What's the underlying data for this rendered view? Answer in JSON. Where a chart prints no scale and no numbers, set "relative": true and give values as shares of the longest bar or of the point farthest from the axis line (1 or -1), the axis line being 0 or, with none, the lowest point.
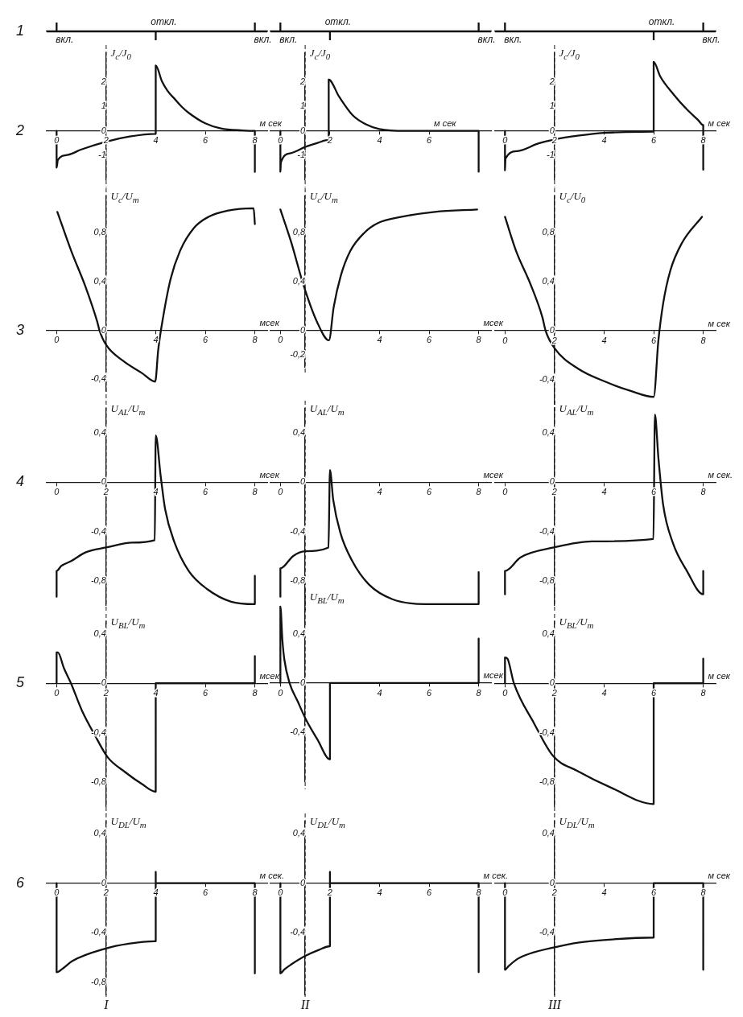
{
  "chart_data": [
    {
      "type": "line",
      "title": "1",
      "relative": true,
      "x": [
        -0.4,
        0,
        0,
        0,
        4,
        4,
        4,
        8,
        8,
        8,
        8.5
      ],
      "values": [
        0,
        0,
        1,
        0,
        0,
        -1,
        0,
        0,
        1,
        0,
        0
      ],
      "color": "#111111",
      "xlim": [
        -0.4,
        8.5
      ],
      "tick_labels": false,
      "marker": "none",
      "annotations": [
        {
          "text": "вкл.",
          "x": 0,
          "y": 1
        },
        {
          "text": "откл.",
          "x": 4,
          "y": -1
        },
        {
          "text": "вкл.",
          "x": 8,
          "y": 1
        }
      ]
    },
    {
      "type": "line",
      "relative": true,
      "x": [
        -0.4,
        0,
        0,
        0,
        2,
        2,
        2,
        8,
        8,
        8,
        8.5
      ],
      "values": [
        0,
        0,
        1,
        0,
        0,
        -1,
        0,
        0,
        1,
        0,
        0
      ],
      "color": "#111111",
      "xlim": [
        -0.4,
        8.5
      ],
      "tick_labels": false,
      "marker": "none",
      "annotations": [
        {
          "text": "вкл.",
          "x": 0,
          "y": 1
        },
        {
          "text": "откл.",
          "x": 2,
          "y": -1
        },
        {
          "text": "вкл.",
          "x": 8,
          "y": 1
        }
      ]
    },
    {
      "type": "line",
      "relative": true,
      "x": [
        -0.4,
        0,
        0,
        0,
        6,
        6,
        6,
        8,
        8,
        8,
        8.5
      ],
      "values": [
        0,
        0,
        1,
        0,
        0,
        -1,
        0,
        0,
        1,
        0,
        0
      ],
      "color": "#111111",
      "xlim": [
        -0.4,
        8.5
      ],
      "tick_labels": false,
      "marker": "none",
      "annotations": [
        {
          "text": "вкл.",
          "x": 0,
          "y": 1
        },
        {
          "text": "откл.",
          "x": 6,
          "y": -1
        },
        {
          "text": "вкл.",
          "x": 8,
          "y": 1
        }
      ]
    },
    {
      "type": "line",
      "title": "2",
      "xlabel": "м сек",
      "ylabel": "J$_{c}$/J$_{0}$",
      "x": [
        0,
        0,
        0.05,
        0.46,
        1.0,
        2.0,
        2.95,
        4.0,
        4.0,
        4.25,
        4.47,
        4.79,
        5.06,
        5.33,
        5.98,
        6.63,
        7.5,
        8.0,
        8.0
      ],
      "values": [
        0,
        -1.5,
        -1.19,
        -0.98,
        -0.76,
        -0.44,
        -0.23,
        -0.12,
        2.68,
        2.03,
        1.65,
        1.28,
        0.98,
        0.74,
        0.32,
        0.1,
        0.02,
        0.0,
        -1.68
      ],
      "color": "#111111",
      "xlim": [
        -0.4,
        8.5
      ],
      "ylim": [
        -2,
        3.2
      ],
      "xticks": [
        0,
        2,
        4,
        6,
        8
      ],
      "yticks": [
        -1,
        0,
        1,
        2
      ],
      "ref_lines": [
        {
          "axis": "x",
          "value": 2
        }
      ],
      "marker": "none"
    },
    {
      "type": "line",
      "xlabel": "м сек",
      "ylabel": "J$_{c}$/J$_{0}$",
      "x": [
        0,
        0,
        0.02,
        0.42,
        1.02,
        1.5,
        1.95,
        1.95,
        2.37,
        2.91,
        3.45,
        3.99,
        5.07,
        8.0,
        8.0
      ],
      "values": [
        0,
        -1.67,
        -1.29,
        -0.91,
        -0.65,
        -0.49,
        -0.37,
        2.1,
        1.4,
        0.65,
        0.27,
        0.08,
        0.0,
        0.0,
        -1.67
      ],
      "color": "#111111",
      "xlim": [
        -0.4,
        8.5
      ],
      "ylim": [
        -2,
        3.2
      ],
      "xticks": [
        0,
        2,
        4,
        6
      ],
      "yticks": [
        -1,
        0,
        1,
        2
      ],
      "ref_lines": [
        {
          "axis": "x",
          "value": 1
        }
      ],
      "marker": "none"
    },
    {
      "type": "line",
      "xlabel": "м сек",
      "ylabel": "J$_{c}$/J$_{0}$",
      "x": [
        0,
        0,
        0.02,
        0.49,
        1.36,
        2.0,
        3.0,
        3.97,
        4.84,
        6.0,
        6.0,
        6.26,
        6.8,
        7.35,
        7.79,
        8.0,
        8.0
      ],
      "values": [
        0,
        -1.62,
        -1.14,
        -0.83,
        -0.51,
        -0.35,
        -0.19,
        -0.08,
        -0.05,
        -0.03,
        2.83,
        2.24,
        1.5,
        0.87,
        0.45,
        0.24,
        -1.59
      ],
      "color": "#111111",
      "xlim": [
        -0.4,
        8.5
      ],
      "ylim": [
        -2,
        3.2
      ],
      "xticks": [
        0,
        2,
        4,
        6,
        8
      ],
      "yticks": [
        -1,
        0,
        1,
        2
      ],
      "ref_lines": [
        {
          "axis": "x",
          "value": 2
        }
      ],
      "marker": "none"
    },
    {
      "type": "line",
      "title": "3",
      "xlabel": "мсек",
      "ylabel": "U$_{c}$/U$_{m}$",
      "x": [
        0.03,
        0.59,
        1.16,
        1.64,
        1.73,
        2.0,
        2.68,
        3.44,
        3.98,
        4.1,
        4.3,
        4.6,
        4.98,
        5.55,
        6.13,
        6.89,
        7.95,
        8.0
      ],
      "values": [
        0.97,
        0.65,
        0.36,
        0.07,
        0.0,
        -0.12,
        -0.25,
        -0.35,
        -0.42,
        -0.16,
        0.11,
        0.42,
        0.65,
        0.84,
        0.93,
        0.98,
        1.0,
        0.87
      ],
      "color": "#111111",
      "xlim": [
        -0.4,
        8.5
      ],
      "ylim": [
        -0.5,
        1.1
      ],
      "xticks": [
        0,
        4,
        6,
        8
      ],
      "yticks": [
        {
          "value": -0.4,
          "label": "-0,4"
        },
        0,
        {
          "value": 0.4,
          "label": "0,4"
        },
        {
          "value": 0.8,
          "label": "0,8"
        }
      ],
      "ref_lines": [
        {
          "axis": "x",
          "value": 2
        }
      ],
      "marker": "none"
    },
    {
      "type": "line",
      "xlabel": "мсек",
      "ylabel": "U$_{c}$/U$_{m}$",
      "x": [
        0,
        0.44,
        0.92,
        1.48,
        1.96,
        2.15,
        2.44,
        2.82,
        3.39,
        3.95,
        4.9,
        6.23,
        7.94
      ],
      "values": [
        0.99,
        0.72,
        0.38,
        0.07,
        -0.08,
        0.19,
        0.45,
        0.65,
        0.8,
        0.88,
        0.93,
        0.97,
        0.99
      ],
      "color": "#111111",
      "xlim": [
        -0.4,
        8.5
      ],
      "ylim": [
        -0.3,
        1.1
      ],
      "xticks": [
        0,
        4,
        6,
        8
      ],
      "yticks": [
        {
          "value": -0.2,
          "label": "-0,2"
        },
        0,
        {
          "value": 0.4,
          "label": "0,4"
        },
        {
          "value": 0.8,
          "label": "0,8"
        }
      ],
      "ref_lines": [
        {
          "axis": "x",
          "value": 1
        }
      ],
      "marker": "none"
    },
    {
      "type": "line",
      "xlabel": "м сек",
      "ylabel": "U$_{c}$/U$_{0}$",
      "x": [
        0,
        0.45,
        1.03,
        1.51,
        1.64,
        1.99,
        2.95,
        4.1,
        5.05,
        6.0,
        6.19,
        6.38,
        6.67,
        7.15,
        7.95
      ],
      "values": [
        0.93,
        0.65,
        0.38,
        0.11,
        0.0,
        -0.14,
        -0.31,
        -0.42,
        -0.49,
        -0.54,
        -0.08,
        0.22,
        0.49,
        0.72,
        0.93
      ],
      "color": "#111111",
      "xlim": [
        -0.4,
        8.5
      ],
      "ylim": [
        -0.6,
        1.1
      ],
      "xticks": [
        0,
        2,
        4,
        6,
        8
      ],
      "yticks": [
        {
          "value": -0.4,
          "label": "-0,4"
        },
        0,
        {
          "value": 0.4,
          "label": "0,4"
        },
        {
          "value": 0.8,
          "label": "0,8"
        }
      ],
      "ref_lines": [
        {
          "axis": "x",
          "value": 2
        }
      ],
      "marker": "none"
    },
    {
      "type": "line",
      "title": "4",
      "xlabel": "мсек",
      "ylabel": "U$_{AL}$/U$_{m}$",
      "x": [
        0,
        0,
        0.19,
        0.59,
        1.16,
        2.0,
        3.05,
        3.96,
        4.0,
        4.2,
        4.38,
        4.76,
        5.33,
        6.09,
        7.04,
        8.0,
        8.0
      ],
      "values": [
        -0.93,
        -0.72,
        -0.68,
        -0.64,
        -0.57,
        -0.53,
        -0.49,
        -0.47,
        0.38,
        0.05,
        -0.22,
        -0.49,
        -0.72,
        -0.87,
        -0.97,
        -0.99,
        -0.76
      ],
      "color": "#111111",
      "xlim": [
        -0.4,
        8.5
      ],
      "ylim": [
        -1,
        0.6
      ],
      "xticks": [
        0,
        2,
        4,
        6,
        8
      ],
      "yticks": [
        {
          "value": -0.8,
          "label": "-0,8"
        },
        {
          "value": -0.4,
          "label": "-0,4"
        },
        0,
        {
          "value": 0.4,
          "label": "0,4"
        }
      ],
      "ref_lines": [
        {
          "axis": "x",
          "value": 2
        }
      ],
      "marker": "none"
    },
    {
      "type": "line",
      "xlabel": "мсек",
      "ylabel": "U$_{AL}$/U$_{m}$",
      "x": [
        0,
        0,
        0.51,
        0.99,
        1.94,
        2.0,
        2.13,
        2.42,
        2.9,
        3.57,
        4.52,
        5.85,
        8.0,
        8.0
      ],
      "values": [
        -0.93,
        -0.7,
        -0.6,
        -0.56,
        -0.53,
        0.1,
        -0.14,
        -0.41,
        -0.64,
        -0.83,
        -0.95,
        -0.99,
        -0.99,
        -0.73
      ],
      "color": "#111111",
      "xlim": [
        -0.4,
        8.5
      ],
      "ylim": [
        -1,
        0.6
      ],
      "xticks": [
        0,
        4,
        6,
        8
      ],
      "yticks": [
        {
          "value": -0.8,
          "label": "-0,8"
        },
        {
          "value": -0.4,
          "label": "-0,4"
        },
        0,
        {
          "value": 0.4,
          "label": "0,4"
        }
      ],
      "ref_lines": [
        {
          "axis": "x",
          "value": 1
        }
      ],
      "marker": "none"
    },
    {
      "type": "line",
      "xlabel": "м сек.",
      "ylabel": "U$_{AL}$/U$_{m}$",
      "x": [
        0,
        0,
        0.63,
        1.97,
        3.5,
        5.99,
        6.05,
        6.19,
        6.38,
        6.77,
        7.34,
        8.0,
        8.0
      ],
      "values": [
        -0.91,
        -0.72,
        -0.61,
        -0.53,
        -0.48,
        -0.46,
        0.55,
        0.2,
        -0.18,
        -0.49,
        -0.72,
        -0.91,
        -0.72
      ],
      "color": "#111111",
      "xlim": [
        -0.4,
        8.5
      ],
      "ylim": [
        -1,
        0.6
      ],
      "xticks": [
        0,
        2,
        4,
        6,
        8
      ],
      "yticks": [
        {
          "value": -0.8,
          "label": "-0,8"
        },
        {
          "value": -0.4,
          "label": "-0,4"
        },
        0,
        {
          "value": 0.4,
          "label": "0,4"
        }
      ],
      "ref_lines": [
        {
          "axis": "x",
          "value": 2
        }
      ],
      "marker": "none"
    },
    {
      "type": "line",
      "title": "5",
      "xlabel": "мсек",
      "ylabel": "U$_{BL}$/U$_{m}$",
      "x": [
        0,
        0,
        0.05,
        0.3,
        0.58,
        1.02,
        1.54,
        2.06,
        2.76,
        3.46,
        4.0,
        4.0,
        8.0,
        8.0
      ],
      "values": [
        0,
        0.25,
        0.25,
        0.12,
        0,
        -0.22,
        -0.42,
        -0.6,
        -0.72,
        -0.82,
        -0.88,
        0,
        0,
        0.22
      ],
      "color": "#111111",
      "xlim": [
        -0.4,
        8.5
      ],
      "ylim": [
        -1,
        0.5
      ],
      "xticks": [
        0,
        2,
        4,
        6,
        8
      ],
      "yticks": [
        {
          "value": -0.8,
          "label": "-0,8"
        },
        {
          "value": -0.4,
          "label": "-0,4"
        },
        0,
        {
          "value": 0.4,
          "label": "0,4"
        }
      ],
      "ref_lines": [
        {
          "axis": "x",
          "value": 2
        }
      ],
      "marker": "none"
    },
    {
      "type": "line",
      "xlabel": "мсек",
      "ylabel": "U$_{BL}$/U$_{m}$",
      "x": [
        0,
        0,
        0.08,
        0.16,
        0.37,
        0.7,
        1.04,
        1.5,
        2.0,
        2.0,
        8.0,
        8.0
      ],
      "values": [
        0,
        0.62,
        0.35,
        0.19,
        0,
        -0.15,
        -0.3,
        -0.46,
        -0.62,
        0,
        0,
        0.36
      ],
      "color": "#111111",
      "xlim": [
        -0.4,
        8.5
      ],
      "ylim": [
        -0.8,
        0.7
      ],
      "xticks": [
        0,
        4,
        6,
        8
      ],
      "yticks": [
        {
          "value": -0.4,
          "label": "-0,4"
        },
        0,
        {
          "value": 0.4,
          "label": "0,4"
        }
      ],
      "ref_lines": [
        {
          "axis": "x",
          "value": 1
        }
      ],
      "marker": "none"
    },
    {
      "type": "line",
      "xlabel": "м сек",
      "ylabel": "U$_{BL}$/U$_{m}$",
      "x": [
        0,
        0,
        0.1,
        0.36,
        1.16,
        1.94,
        2.91,
        4.31,
        6.0,
        6.0,
        8.0,
        8.0
      ],
      "values": [
        0,
        0.21,
        0.2,
        0,
        -0.32,
        -0.59,
        -0.71,
        -0.85,
        -0.98,
        0,
        0,
        0.2
      ],
      "color": "#111111",
      "xlim": [
        -0.4,
        8.5
      ],
      "ylim": [
        -1,
        0.5
      ],
      "xticks": [
        0,
        2,
        4,
        6,
        8
      ],
      "yticks": [
        {
          "value": -0.8,
          "label": "-0,8"
        },
        {
          "value": -0.4,
          "label": "-0,4"
        },
        0,
        {
          "value": 0.4,
          "label": "0,4"
        }
      ],
      "ref_lines": [
        {
          "axis": "x",
          "value": 2
        }
      ],
      "marker": "none"
    },
    {
      "type": "line",
      "title": "6",
      "xlabel": "м сек.",
      "ylabel": "U$_{DL}$/U$_{m}$",
      "x": [
        0,
        0,
        0.25,
        0.63,
        1.96,
        2.91,
        3.96,
        4.0,
        4.0,
        4.0,
        8.0,
        8.0
      ],
      "values": [
        0,
        -0.72,
        -0.69,
        -0.63,
        -0.53,
        -0.49,
        -0.47,
        -0.47,
        0.09,
        0,
        0,
        -0.73
      ],
      "color": "#111111",
      "xlim": [
        -0.4,
        8.5
      ],
      "ylim": [
        -0.9,
        0.5
      ],
      "xticks": [
        0,
        2,
        4,
        6,
        8
      ],
      "yticks": [
        {
          "value": -0.8,
          "label": "-0,8"
        },
        {
          "value": -0.4,
          "label": "-0,4"
        },
        0,
        {
          "value": 0.4,
          "label": "0,4"
        }
      ],
      "ref_lines": [
        {
          "axis": "x",
          "value": 2,
          "label": "I"
        }
      ],
      "marker": "none"
    },
    {
      "type": "line",
      "xlabel": "м сек.",
      "ylabel": "U$_{DL}$/U$_{m}$",
      "x": [
        0,
        0,
        0.15,
        0.42,
        0.99,
        1.55,
        2.0,
        2.0,
        2.0,
        8.0,
        8.0
      ],
      "values": [
        0,
        -0.73,
        -0.7,
        -0.66,
        -0.59,
        -0.54,
        -0.51,
        0.09,
        0,
        0,
        -0.72
      ],
      "color": "#111111",
      "xlim": [
        -0.4,
        8.5
      ],
      "ylim": [
        -0.9,
        0.5
      ],
      "xticks": [
        0,
        2,
        4,
        6,
        8
      ],
      "yticks": [
        {
          "value": -0.4,
          "label": "-0,4"
        },
        0,
        {
          "value": 0.4,
          "label": "0,4"
        }
      ],
      "ref_lines": [
        {
          "axis": "x",
          "value": 1,
          "label": "II"
        }
      ],
      "marker": "none"
    },
    {
      "type": "line",
      "xlabel": "м сек",
      "ylabel": "U$_{DL}$/U$_{m}$",
      "x": [
        0,
        0,
        0.15,
        0.53,
        1.0,
        1.97,
        3.0,
        3.98,
        6.0,
        6.0,
        8.0,
        8.0
      ],
      "values": [
        0,
        -0.7,
        -0.67,
        -0.61,
        -0.57,
        -0.52,
        -0.48,
        -0.46,
        -0.44,
        0,
        0,
        -0.7
      ],
      "color": "#111111",
      "xlim": [
        -0.4,
        8.5
      ],
      "ylim": [
        -0.9,
        0.5
      ],
      "xticks": [
        0,
        2,
        4,
        6,
        8
      ],
      "yticks": [
        {
          "value": -0.4,
          "label": "-0,4"
        },
        0,
        {
          "value": 0.4,
          "label": "0,4"
        }
      ],
      "ref_lines": [
        {
          "axis": "x",
          "value": 2,
          "label": "III"
        }
      ],
      "marker": "none"
    }
  ]
}
